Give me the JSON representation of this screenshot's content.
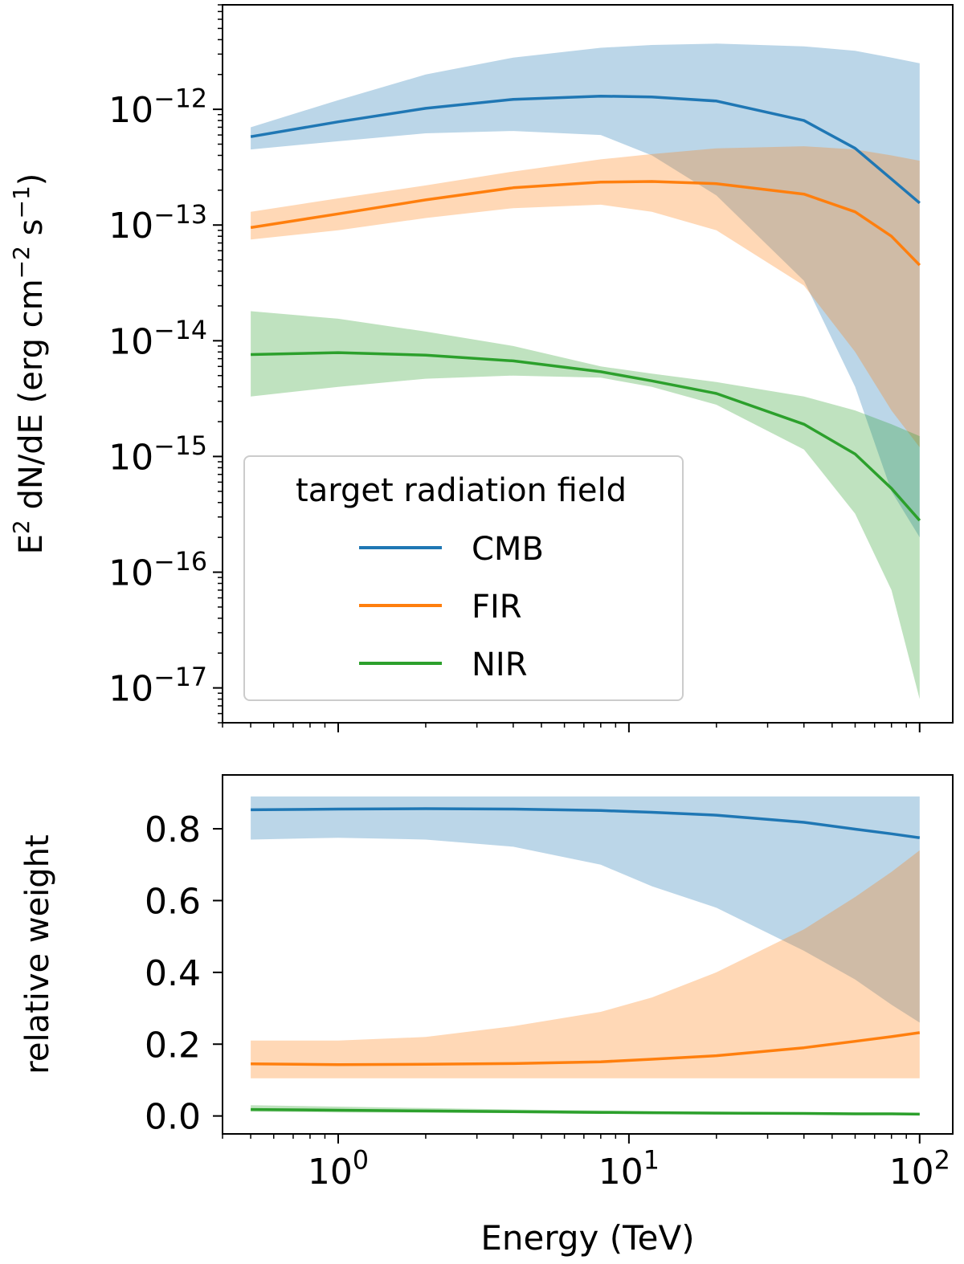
{
  "chart_data": [
    {
      "type": "line",
      "title": "",
      "xlabel": "",
      "ylabel": "E² dN/dE (erg cm⁻² s⁻¹)",
      "xscale": "log",
      "yscale": "log",
      "xlim": [
        0.4,
        130
      ],
      "ylim": [
        5e-18,
        8e-12
      ],
      "yticks": [
        {
          "value": 1e-12,
          "base": "10",
          "exp": "−12"
        },
        {
          "value": 1e-13,
          "base": "10",
          "exp": "−13"
        },
        {
          "value": 1e-14,
          "base": "10",
          "exp": "−14"
        },
        {
          "value": 1e-15,
          "base": "10",
          "exp": "−15"
        },
        {
          "value": 1e-16,
          "base": "10",
          "exp": "−16"
        },
        {
          "value": 1e-17,
          "base": "10",
          "exp": "−17"
        }
      ],
      "legend": {
        "title": "target radiation field",
        "location": "lower-left"
      },
      "x": [
        0.5,
        1,
        2,
        4,
        8,
        12,
        20,
        40,
        60,
        80,
        100
      ],
      "series": [
        {
          "name": "CMB",
          "color": "#1f77b4",
          "values": [
            5.8e-13,
            7.8e-13,
            1.02e-12,
            1.22e-12,
            1.3e-12,
            1.28e-12,
            1.18e-12,
            8e-13,
            4.6e-13,
            2.5e-13,
            1.55e-13
          ],
          "upper": [
            7e-13,
            1.2e-12,
            2e-12,
            2.8e-12,
            3.4e-12,
            3.6e-12,
            3.7e-12,
            3.5e-12,
            3.2e-12,
            2.8e-12,
            2.5e-12
          ],
          "lower": [
            4.5e-13,
            5.3e-13,
            6.2e-13,
            6.5e-13,
            6e-13,
            4e-13,
            1.8e-13,
            3.3e-14,
            4e-15,
            5e-16,
            2e-16
          ]
        },
        {
          "name": "FIR",
          "color": "#ff7f0e",
          "values": [
            9.5e-14,
            1.25e-13,
            1.65e-13,
            2.1e-13,
            2.35e-13,
            2.38e-13,
            2.28e-13,
            1.85e-13,
            1.3e-13,
            8e-14,
            4.5e-14
          ],
          "upper": [
            1.3e-13,
            1.7e-13,
            2.2e-13,
            2.9e-13,
            3.7e-13,
            4.1e-13,
            4.6e-13,
            4.8e-13,
            4.5e-13,
            4e-13,
            3.6e-13
          ],
          "lower": [
            7.5e-14,
            9e-14,
            1.15e-13,
            1.4e-13,
            1.5e-13,
            1.3e-13,
            9e-14,
            3e-14,
            8e-15,
            2.5e-15,
            1.2e-15
          ]
        },
        {
          "name": "NIR",
          "color": "#2ca02c",
          "values": [
            7.6e-15,
            7.9e-15,
            7.5e-15,
            6.7e-15,
            5.4e-15,
            4.5e-15,
            3.5e-15,
            1.9e-15,
            1.05e-15,
            5.3e-16,
            2.8e-16
          ],
          "upper": [
            1.8e-14,
            1.55e-14,
            1.2e-14,
            9e-15,
            6e-15,
            5.2e-15,
            4.4e-15,
            3.3e-15,
            2.5e-15,
            1.9e-15,
            1.5e-15
          ],
          "lower": [
            3.3e-15,
            4e-15,
            4.7e-15,
            5e-15,
            4.8e-15,
            4e-15,
            2.8e-15,
            1.15e-15,
            3.2e-16,
            7e-17,
            8e-18
          ]
        }
      ]
    },
    {
      "type": "line",
      "title": "",
      "xlabel": "Energy (TeV)",
      "ylabel": "relative weight",
      "xscale": "log",
      "yscale": "linear",
      "xlim": [
        0.4,
        130
      ],
      "ylim": [
        -0.05,
        0.95
      ],
      "yticks": [
        "0.0",
        "0.2",
        "0.4",
        "0.6",
        "0.8"
      ],
      "xticks": [
        {
          "value": 1,
          "base": "10",
          "exp": "0"
        },
        {
          "value": 10,
          "base": "10",
          "exp": "1"
        },
        {
          "value": 100,
          "base": "10",
          "exp": "2"
        }
      ],
      "x": [
        0.5,
        1,
        2,
        4,
        8,
        12,
        20,
        40,
        60,
        80,
        100
      ],
      "series": [
        {
          "name": "CMB",
          "color": "#1f77b4",
          "values": [
            0.853,
            0.855,
            0.856,
            0.855,
            0.851,
            0.846,
            0.838,
            0.818,
            0.799,
            0.786,
            0.775
          ],
          "upper": [
            0.89,
            0.89,
            0.89,
            0.89,
            0.89,
            0.89,
            0.89,
            0.89,
            0.89,
            0.89,
            0.89
          ],
          "lower": [
            0.77,
            0.775,
            0.77,
            0.75,
            0.7,
            0.64,
            0.58,
            0.46,
            0.38,
            0.31,
            0.26
          ]
        },
        {
          "name": "FIR",
          "color": "#ff7f0e",
          "values": [
            0.145,
            0.143,
            0.144,
            0.146,
            0.151,
            0.158,
            0.168,
            0.19,
            0.208,
            0.221,
            0.232
          ],
          "upper": [
            0.21,
            0.21,
            0.22,
            0.25,
            0.29,
            0.33,
            0.4,
            0.52,
            0.61,
            0.68,
            0.74
          ],
          "lower": [
            0.105,
            0.105,
            0.105,
            0.105,
            0.105,
            0.105,
            0.105,
            0.105,
            0.105,
            0.105,
            0.105
          ]
        },
        {
          "name": "NIR",
          "color": "#2ca02c",
          "values": [
            0.018,
            0.016,
            0.014,
            0.012,
            0.01,
            0.009,
            0.008,
            0.007,
            0.006,
            0.006,
            0.005
          ],
          "upper": [
            0.03,
            0.026,
            0.022,
            0.018,
            0.015,
            0.013,
            0.012,
            0.01,
            0.009,
            0.009,
            0.008
          ],
          "lower": [
            0.012,
            0.01,
            0.009,
            0.008,
            0.006,
            0.005,
            0.005,
            0.004,
            0.003,
            0.003,
            0.002
          ]
        }
      ]
    }
  ]
}
